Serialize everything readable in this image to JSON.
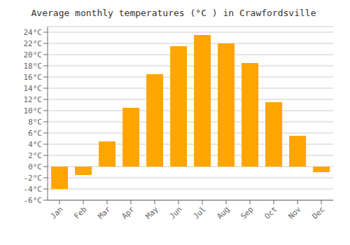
{
  "chart_data": {
    "type": "bar",
    "title": "Average monthly temperatures (°C ) in Crawfordsville",
    "categories": [
      "Jan",
      "Feb",
      "Mar",
      "Apr",
      "May",
      "Jun",
      "Jul",
      "Aug",
      "Sep",
      "Oct",
      "Nov",
      "Dec"
    ],
    "values": [
      -4.0,
      -1.5,
      4.5,
      10.5,
      16.5,
      21.5,
      23.5,
      22.0,
      18.5,
      11.5,
      5.5,
      -1.0
    ],
    "color": "#FFA500",
    "ylim": [
      -6,
      25
    ],
    "yticks": [
      {
        "value": -6,
        "label": "-6°C"
      },
      {
        "value": -4,
        "label": "-4°C"
      },
      {
        "value": -2,
        "label": "-2°C"
      },
      {
        "value": 0,
        "label": "0°C"
      },
      {
        "value": 2,
        "label": "2°C"
      },
      {
        "value": 4,
        "label": "4°C"
      },
      {
        "value": 6,
        "label": "6°C"
      },
      {
        "value": 8,
        "label": "8°C"
      },
      {
        "value": 10,
        "label": "10°C"
      },
      {
        "value": 12,
        "label": "12°C"
      },
      {
        "value": 14,
        "label": "14°C"
      },
      {
        "value": 16,
        "label": "16°C"
      },
      {
        "value": 18,
        "label": "18°C"
      },
      {
        "value": 20,
        "label": "20°C"
      },
      {
        "value": 22,
        "label": "22°C"
      },
      {
        "value": 24,
        "label": "24°C"
      }
    ],
    "grid": true
  }
}
